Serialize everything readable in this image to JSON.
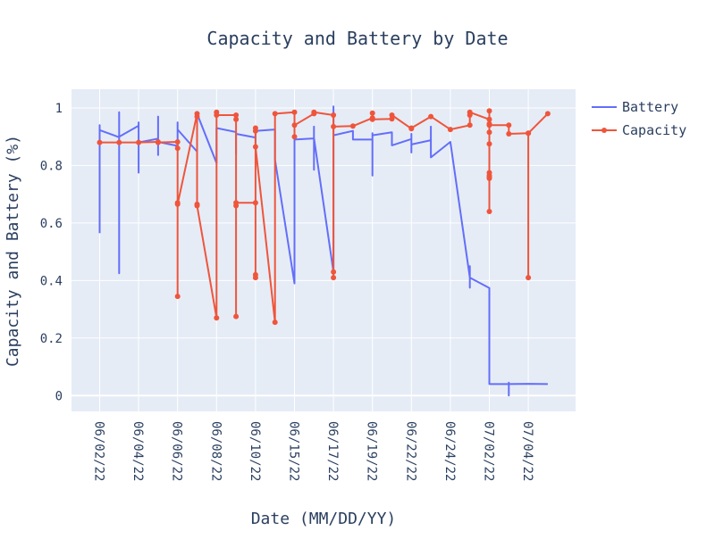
{
  "chart_data": {
    "type": "line",
    "title": "Capacity and Battery by Date",
    "xlabel": "Date (MM/DD/YY)",
    "ylabel": "Capacity and Battery (%)",
    "x_tick_labels": [
      "06/02/22",
      "06/04/22",
      "06/06/22",
      "06/08/22",
      "06/10/22",
      "06/15/22",
      "06/17/22",
      "06/19/22",
      "06/22/22",
      "06/24/22",
      "07/02/22",
      "07/04/22"
    ],
    "y_ticks": [
      0,
      0.2,
      0.4,
      0.6,
      0.8,
      1
    ],
    "y_tick_labels": [
      "0",
      "0.2",
      "0.4",
      "0.6",
      "0.8",
      "1"
    ],
    "ylim": [
      -0.055,
      1.065
    ],
    "grid": true,
    "legend_position": "top-right",
    "series": [
      {
        "name": "Battery",
        "color": "#636efa",
        "mode": "lines",
        "points": [
          [
            0,
            0.565
          ],
          [
            0,
            0.94
          ],
          [
            0,
            0.923
          ],
          [
            1,
            0.898
          ],
          [
            1,
            0.425
          ],
          [
            1,
            0.985
          ],
          [
            1,
            0.9
          ],
          [
            2,
            0.938
          ],
          [
            2,
            0.775
          ],
          [
            2,
            0.95
          ],
          [
            2,
            0.88
          ],
          [
            3,
            0.893
          ],
          [
            3,
            0.836
          ],
          [
            3,
            0.97
          ],
          [
            3,
            0.882
          ],
          [
            4,
            0.868
          ],
          [
            4,
            0.95
          ],
          [
            4,
            0.925
          ],
          [
            5,
            0.848
          ],
          [
            5,
            0.98
          ],
          [
            6,
            0.808
          ],
          [
            6,
            0.93
          ],
          [
            7,
            0.916
          ],
          [
            7,
            0.84
          ],
          [
            7,
            0.91
          ],
          [
            8,
            0.897
          ],
          [
            8,
            0.865
          ],
          [
            8,
            0.92
          ],
          [
            9,
            0.925
          ],
          [
            9,
            0.82
          ],
          [
            10,
            0.39
          ],
          [
            10,
            0.89
          ],
          [
            11,
            0.894
          ],
          [
            11,
            0.785
          ],
          [
            11,
            0.935
          ],
          [
            11,
            0.895
          ],
          [
            12,
            0.43
          ],
          [
            12,
            1.005
          ],
          [
            12,
            0.905
          ],
          [
            13,
            0.92
          ],
          [
            13,
            0.89
          ],
          [
            14,
            0.89
          ],
          [
            14,
            0.765
          ],
          [
            14,
            0.912
          ],
          [
            14,
            0.905
          ],
          [
            15,
            0.915
          ],
          [
            15,
            0.87
          ],
          [
            16,
            0.892
          ],
          [
            16,
            0.845
          ],
          [
            16,
            0.91
          ],
          [
            16,
            0.873
          ],
          [
            17,
            0.888
          ],
          [
            17,
            0.935
          ],
          [
            17,
            0.828
          ],
          [
            18,
            0.882
          ],
          [
            19,
            0.41
          ],
          [
            19,
            0.375
          ],
          [
            19,
            0.45
          ],
          [
            19,
            0.41
          ],
          [
            20,
            0.374
          ],
          [
            20,
            0.04
          ],
          [
            21,
            0.04
          ],
          [
            21,
            0.0
          ],
          [
            21,
            0.045
          ],
          [
            21,
            0.04
          ],
          [
            22,
            0.041
          ],
          [
            23,
            0.04
          ]
        ]
      },
      {
        "name": "Capacity",
        "color": "#ef553b",
        "mode": "lines+markers",
        "points": [
          [
            0,
            0.88
          ],
          [
            1,
            0.88
          ],
          [
            2,
            0.88
          ],
          [
            3,
            0.882
          ],
          [
            3,
            0.88
          ],
          [
            4,
            0.882
          ],
          [
            4,
            0.86
          ],
          [
            4,
            0.345
          ],
          [
            4,
            0.67
          ],
          [
            4,
            0.665
          ],
          [
            5,
            0.98
          ],
          [
            5,
            0.97
          ],
          [
            5,
            0.665
          ],
          [
            5,
            0.66
          ],
          [
            6,
            0.27
          ],
          [
            6,
            0.985
          ],
          [
            6,
            0.975
          ],
          [
            7,
            0.975
          ],
          [
            7,
            0.96
          ],
          [
            7,
            0.275
          ],
          [
            7,
            0.66
          ],
          [
            7,
            0.67
          ],
          [
            8,
            0.67
          ],
          [
            8,
            0.42
          ],
          [
            8,
            0.41
          ],
          [
            8,
            0.92
          ],
          [
            8,
            0.93
          ],
          [
            8,
            0.865
          ],
          [
            9,
            0.255
          ],
          [
            9,
            0.98
          ],
          [
            10,
            0.985
          ],
          [
            10,
            0.9
          ],
          [
            10,
            0.94
          ],
          [
            11,
            0.98
          ],
          [
            11,
            0.985
          ],
          [
            12,
            0.975
          ],
          [
            12,
            0.43
          ],
          [
            12,
            0.41
          ],
          [
            12,
            0.935
          ],
          [
            13,
            0.937
          ],
          [
            14,
            0.965
          ],
          [
            14,
            0.982
          ],
          [
            14,
            0.96
          ],
          [
            15,
            0.962
          ],
          [
            15,
            0.975
          ],
          [
            16,
            0.928
          ],
          [
            16,
            0.93
          ],
          [
            17,
            0.97
          ],
          [
            18,
            0.925
          ],
          [
            19,
            0.94
          ],
          [
            19,
            0.975
          ],
          [
            19,
            0.985
          ],
          [
            20,
            0.96
          ],
          [
            20,
            0.945
          ],
          [
            20,
            0.99
          ],
          [
            20,
            0.915
          ],
          [
            20,
            0.875
          ],
          [
            20,
            0.64
          ],
          [
            20,
            0.755
          ],
          [
            20,
            0.76
          ],
          [
            20,
            0.775
          ],
          [
            20,
            0.765
          ],
          [
            20,
            0.94
          ],
          [
            21,
            0.94
          ],
          [
            21,
            0.91
          ],
          [
            22,
            0.912
          ],
          [
            22,
            0.41
          ],
          [
            22,
            0.912
          ],
          [
            23,
            0.98
          ]
        ]
      }
    ]
  }
}
